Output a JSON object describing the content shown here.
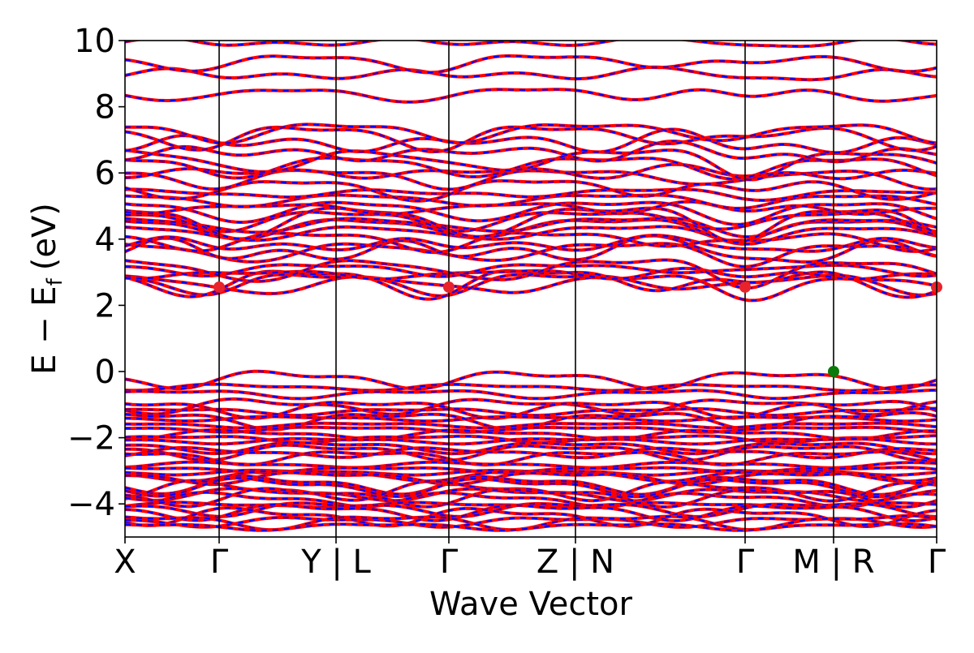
{
  "chart_data": {
    "type": "line",
    "title": "",
    "xlabel": "Wave Vector",
    "ylabel_main": "E − E",
    "ylabel_sub": "f",
    "ylabel_unit": "(eV)",
    "ylim": [
      -5,
      10
    ],
    "yticks": [
      10,
      8,
      6,
      4,
      2,
      0,
      -2,
      -4
    ],
    "ytick_labels": [
      "10",
      "8",
      "6",
      "4",
      "2",
      "0",
      "−2",
      "−4"
    ],
    "xlim": [
      0,
      10
    ],
    "kpoints": [
      {
        "x": 0.0,
        "label": "X"
      },
      {
        "x": 1.16,
        "label": "Γ"
      },
      {
        "x": 2.6,
        "label": "Y | L"
      },
      {
        "x": 3.99,
        "label": "Γ"
      },
      {
        "x": 5.55,
        "label": "Z | N"
      },
      {
        "x": 7.64,
        "label": "Γ"
      },
      {
        "x": 8.73,
        "label": "M | R"
      },
      {
        "x": 10.0,
        "label": "Γ"
      }
    ],
    "segment_breaks": [
      2.6,
      5.55,
      8.73
    ],
    "series": [
      {
        "style": "solid",
        "color": "#ff0000"
      },
      {
        "style": "dashed",
        "color": "#0000ff"
      }
    ],
    "cbm_points": [
      {
        "x": 1.16,
        "y": 2.55
      },
      {
        "x": 3.99,
        "y": 2.55
      },
      {
        "x": 7.64,
        "y": 2.55
      },
      {
        "x": 10.0,
        "y": 2.55
      }
    ],
    "vbm_points": [
      {
        "x": 8.73,
        "y": 0.0
      }
    ],
    "cbm_color": "#e8232b",
    "vbm_color": "#0a7a0a",
    "conduction_band_groups": [
      {
        "base": 2.72,
        "count": 6,
        "spread": 0.5
      },
      {
        "base": 3.7,
        "count": 10,
        "spread": 1.2
      },
      {
        "base": 5.0,
        "count": 12,
        "spread": 2.4
      },
      {
        "base": 8.5,
        "count": 4,
        "spread": 1.5
      }
    ],
    "valence_band_groups": [
      {
        "base": -0.22,
        "count": 3,
        "spread": 0.5
      },
      {
        "base": -1.0,
        "count": 14,
        "spread": 1.6
      },
      {
        "base": -2.8,
        "count": 18,
        "spread": 1.9
      }
    ]
  }
}
